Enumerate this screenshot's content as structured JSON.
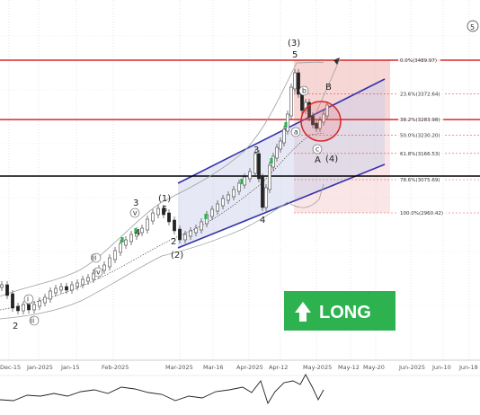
{
  "chart_data": {
    "type": "line",
    "signal": "LONG",
    "colors": {
      "fib_line": "#d62828",
      "channel": "#3333aa",
      "support": "#000000",
      "long_box": "#2db24f",
      "band": "#9aa3a0",
      "candle_up": "#ffffff",
      "candle_down": "#222222"
    },
    "x_dates": [
      "Dec-15",
      "Jan-2025",
      "Jan-15",
      "Feb-2025",
      "Mar-2025",
      "Mar-16",
      "Apr-2025",
      "Apr-12",
      "May-2025",
      "May-12",
      "May-20",
      "Jun-2025",
      "Jun-10",
      "Jun-18"
    ],
    "fib_levels": [
      {
        "label": "0.0%(3489.97)",
        "pct": 0.0,
        "price": 3489.97
      },
      {
        "label": "23.6%(3372.64)",
        "pct": 23.6,
        "price": 3372.64
      },
      {
        "label": "38.2%(3283.98)",
        "pct": 38.2,
        "price": 3283.98
      },
      {
        "label": "50.0%(3230.20)",
        "pct": 50.0,
        "price": 3230.2
      },
      {
        "label": "61.8%(3166.53)",
        "pct": 61.8,
        "price": 3166.53
      },
      {
        "label": "78.6%(3075.69)",
        "pct": 78.6,
        "price": 3075.69
      },
      {
        "label": "100.0%(2960.42)",
        "pct": 100.0,
        "price": 2960.42
      }
    ],
    "wave_labels": [
      "(3)",
      "5",
      "3",
      "(1)",
      "5",
      "4",
      "(2)",
      "2",
      "3",
      "4",
      "A",
      "(4)",
      "B",
      "2"
    ],
    "wave_small_labels": [
      "b",
      "a",
      "c",
      "v",
      "iii",
      "iv",
      "i",
      "ii"
    ],
    "corner_label": "5"
  }
}
